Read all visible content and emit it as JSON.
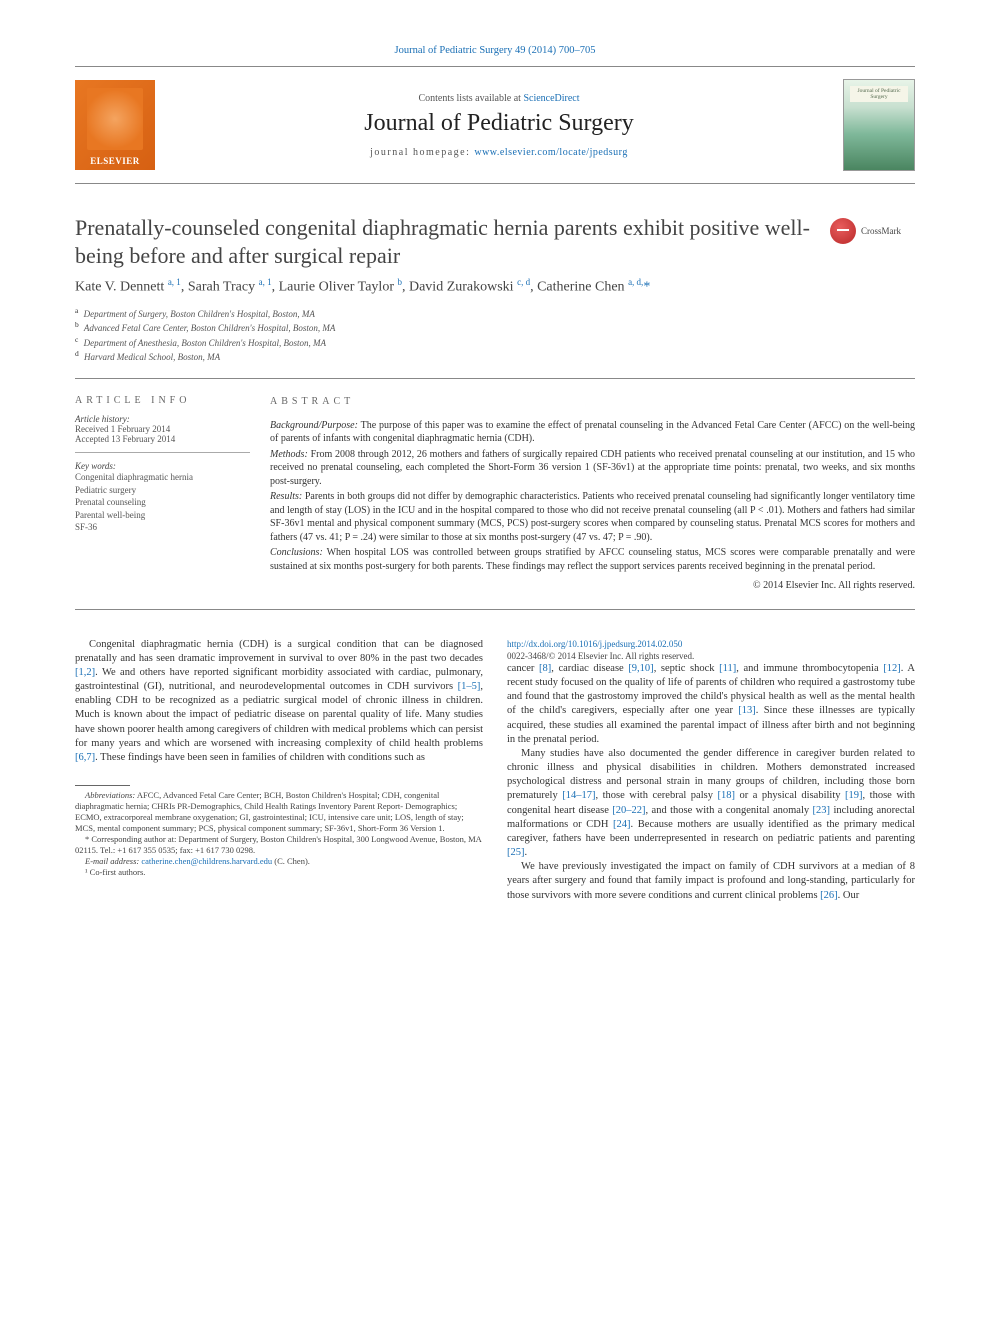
{
  "colors": {
    "link": "#1a6fb5",
    "text": "#333333",
    "muted": "#555555",
    "rule": "#888888",
    "elsevier_orange": "#e87722",
    "crossmark_red": "#c73838"
  },
  "typography": {
    "body_pt": 10.5,
    "title_pt": 22,
    "journal_name_pt": 24,
    "abstract_pt": 10,
    "affil_pt": 9,
    "footnote_pt": 8.5,
    "section_head_letterspacing": 4
  },
  "header": {
    "running_head": "Journal of Pediatric Surgery 49 (2014) 700–705",
    "contents_prefix": "Contents lists available at ",
    "sciencedirect": "ScienceDirect",
    "journal_name": "Journal of Pediatric Surgery",
    "homepage_prefix": "journal homepage: ",
    "homepage_url": "www.elsevier.com/locate/jpedsurg",
    "elsevier_label": "ELSEVIER",
    "cover_text": "Journal of Pediatric Surgery"
  },
  "crossmark": {
    "label": "CrossMark"
  },
  "article": {
    "title": "Prenatally-counseled congenital diaphragmatic hernia parents exhibit positive well-being before and after surgical repair",
    "authors_html": "Kate V. Dennett <sup>a, 1</sup>, Sarah Tracy <sup>a, 1</sup>, Laurie Oliver Taylor <sup>b</sup>, David Zurakowski <sup>c, d</sup>, Catherine Chen <sup>a, d,</sup><span class='star'>*</span>",
    "affiliations": [
      {
        "sup": "a",
        "text": "Department of Surgery, Boston Children's Hospital, Boston, MA"
      },
      {
        "sup": "b",
        "text": "Advanced Fetal Care Center, Boston Children's Hospital, Boston, MA"
      },
      {
        "sup": "c",
        "text": "Department of Anesthesia, Boston Children's Hospital, Boston, MA"
      },
      {
        "sup": "d",
        "text": "Harvard Medical School, Boston, MA"
      }
    ]
  },
  "article_info": {
    "heading": "ARTICLE INFO",
    "history_label": "Article history:",
    "received": "Received 1 February 2014",
    "accepted": "Accepted 13 February 2014",
    "keywords_label": "Key words:",
    "keywords": [
      "Congenital diaphragmatic hernia",
      "Pediatric surgery",
      "Prenatal counseling",
      "Parental well-being",
      "SF-36"
    ]
  },
  "abstract": {
    "heading": "ABSTRACT",
    "background_label": "Background/Purpose:",
    "background": "The purpose of this paper was to examine the effect of prenatal counseling in the Advanced Fetal Care Center (AFCC) on the well-being of parents of infants with congenital diaphragmatic hernia (CDH).",
    "methods_label": "Methods:",
    "methods": "From 2008 through 2012, 26 mothers and fathers of surgically repaired CDH patients who received prenatal counseling at our institution, and 15 who received no prenatal counseling, each completed the Short-Form 36 version 1 (SF-36v1) at the appropriate time points: prenatal, two weeks, and six months post-surgery.",
    "results_label": "Results:",
    "results": "Parents in both groups did not differ by demographic characteristics. Patients who received prenatal counseling had significantly longer ventilatory time and length of stay (LOS) in the ICU and in the hospital compared to those who did not receive prenatal counseling (all P < .01). Mothers and fathers had similar SF-36v1 mental and physical component summary (MCS, PCS) post-surgery scores when compared by counseling status. Prenatal MCS scores for mothers and fathers (47 vs. 41; P = .24) were similar to those at six months post-surgery (47 vs. 47; P = .90).",
    "conclusions_label": "Conclusions:",
    "conclusions": "When hospital LOS was controlled between groups stratified by AFCC counseling status, MCS scores were comparable prenatally and were sustained at six months post-surgery for both parents. These findings may reflect the support services parents received beginning in the prenatal period.",
    "copyright": "© 2014 Elsevier Inc. All rights reserved."
  },
  "body": {
    "para1": "Congenital diaphragmatic hernia (CDH) is a surgical condition that can be diagnosed prenatally and has seen dramatic improvement in survival to over 80% in the past two decades [1,2]. We and others have reported significant morbidity associated with cardiac, pulmonary, gastrointestinal (GI), nutritional, and neurodevelopmental outcomes in CDH survivors [1–5], enabling CDH to be recognized as a pediatric surgical model of chronic illness in children. Much is known about the impact of pediatric disease on parental quality of life. Many studies have shown poorer health among caregivers of children with medical problems which can persist for many years and which are worsened with increasing complexity of child health problems [6,7]. These findings have been seen in families of children with conditions such as",
    "para2a": "cancer [8], cardiac disease [9,10], septic shock [11], and immune thrombocytopenia [12]. A recent study focused on the quality of life of parents of children who required a gastrostomy tube and found that the gastrostomy improved the child's physical health as well as the mental health of the child's caregivers, especially after one year [13]. Since these illnesses are typically acquired, these studies all examined the parental impact of illness after birth and not beginning in the prenatal period.",
    "para2b": "Many studies have also documented the gender difference in caregiver burden related to chronic illness and physical disabilities in children. Mothers demonstrated increased psychological distress and personal strain in many groups of children, including those born prematurely [14–17], those with cerebral palsy [18] or a physical disability [19], those with congenital heart disease [20–22], and those with a congenital anomaly [23] including anorectal malformations or CDH [24]. Because mothers are usually identified as the primary medical caregiver, fathers have been underrepresented in research on pediatric patients and parenting [25].",
    "para2c": "We have previously investigated the impact on family of CDH survivors at a median of 8 years after surgery and found that family impact is profound and long-standing, particularly for those survivors with more severe conditions and current clinical problems [26]. Our"
  },
  "footnotes": {
    "abbrev_label": "Abbreviations:",
    "abbrev": "AFCC, Advanced Fetal Care Center; BCH, Boston Children's Hospital; CDH, congenital diaphragmatic hernia; CHRIs PR-Demographics, Child Health Ratings Inventory Parent Report- Demographics; ECMO, extracorporeal membrane oxygenation; GI, gastrointestinal; ICU, intensive care unit; LOS, length of stay; MCS, mental component summary; PCS, physical component summary; SF-36v1, Short-Form 36 Version 1.",
    "corr": "* Corresponding author at: Department of Surgery, Boston Children's Hospital, 300 Longwood Avenue, Boston, MA 02115. Tel.: +1 617 355 0535; fax: +1 617 730 0298.",
    "email_label": "E-mail address:",
    "email": "catherine.chen@childrens.harvard.edu",
    "email_suffix": "(C. Chen).",
    "cofirst": "¹ Co-first authors."
  },
  "doi": {
    "url": "http://dx.doi.org/10.1016/j.jpedsurg.2014.02.050",
    "issn_line": "0022-3468/© 2014 Elsevier Inc. All rights reserved."
  }
}
